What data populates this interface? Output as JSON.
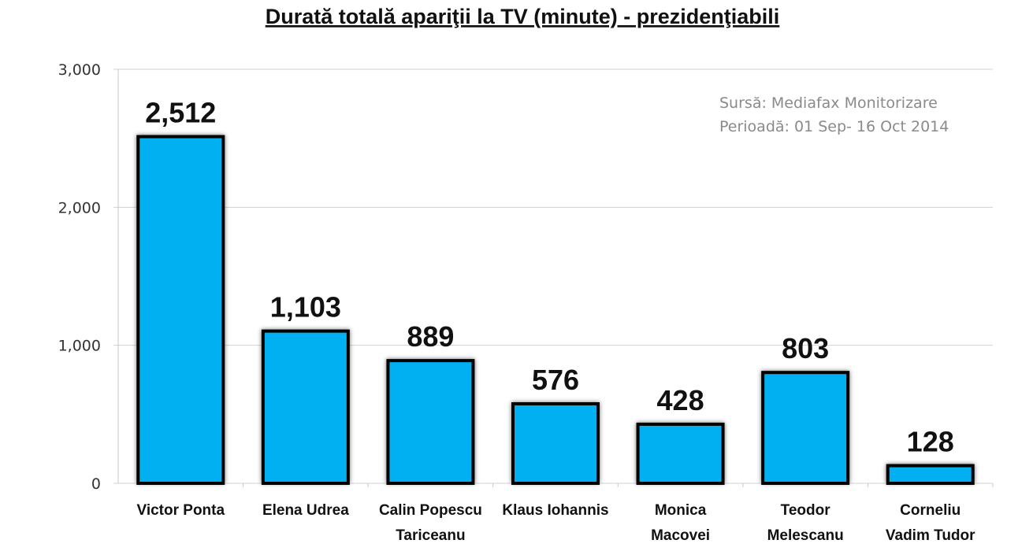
{
  "chart_data": {
    "type": "bar",
    "title": "Durată totală apariţii la TV (minute) - prezidenţiabili",
    "xlabel": "",
    "ylabel": "",
    "categories": [
      [
        "Victor Ponta"
      ],
      [
        "Elena Udrea"
      ],
      [
        "Calin Popescu",
        "Tariceanu"
      ],
      [
        "Klaus Iohannis"
      ],
      [
        "Monica",
        "Macovei"
      ],
      [
        "Teodor",
        "Melescanu"
      ],
      [
        "Corneliu",
        "Vadim Tudor"
      ]
    ],
    "values": [
      2512,
      1103,
      889,
      576,
      428,
      803,
      128
    ],
    "value_labels": [
      "2,512",
      "1,103",
      "889",
      "576",
      "428",
      "803",
      "128"
    ],
    "ylim": [
      0,
      3000
    ],
    "yticks": [
      0,
      1000,
      2000,
      3000
    ],
    "ytick_labels": [
      "0",
      "1,000",
      "2,000",
      "3,000"
    ],
    "grid": true,
    "annotations": [
      "Sursă: Mediafax Monitorizare",
      "Perioadă: 01 Sep- 16 Oct 2014"
    ],
    "bar_color": "#00b0f0",
    "bar_edge_color": "#000000"
  }
}
